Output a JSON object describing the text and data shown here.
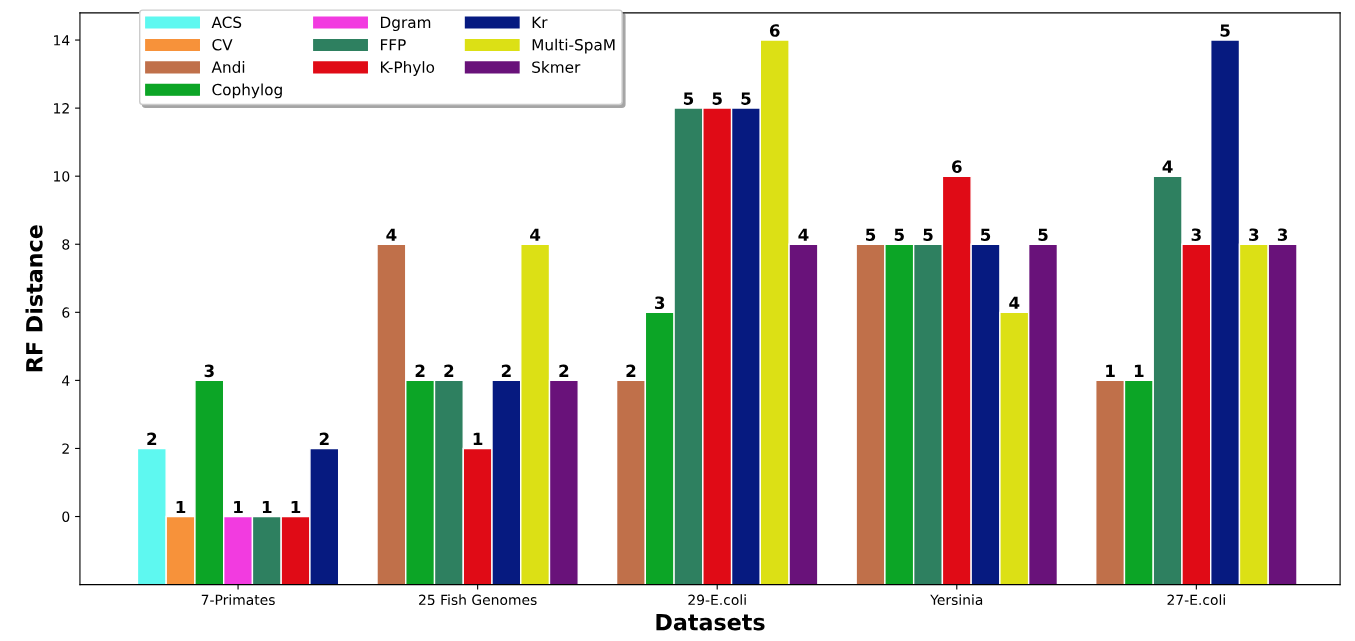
{
  "chart_data": {
    "type": "bar",
    "xlabel": "Datasets",
    "ylabel": "RF Distance",
    "categories": [
      "7-Primates",
      "25 Fish Genomes",
      "29-E.coli",
      "Yersinia",
      "27-E.coli"
    ],
    "ylim": [
      -2,
      14.8
    ],
    "yticks": [
      0,
      2,
      4,
      6,
      8,
      10,
      12,
      14
    ],
    "legend": "top left",
    "grid": false,
    "series": [
      {
        "name": "ACS",
        "color": "#5ef8f0",
        "base": [
          -2,
          null,
          null,
          null,
          null
        ],
        "values": [
          4,
          null,
          null,
          null,
          null
        ]
      },
      {
        "name": "CV",
        "color": "#f7923a",
        "base": [
          -2,
          null,
          null,
          null,
          null
        ],
        "values": [
          2,
          null,
          null,
          null,
          null
        ]
      },
      {
        "name": "Andi",
        "color": "#c0704a",
        "base": [
          null,
          -2,
          -2,
          -2,
          -2
        ],
        "values": [
          null,
          10,
          6,
          10,
          6
        ]
      },
      {
        "name": "Cophylog",
        "color": "#0ca526",
        "base": [
          -2,
          -2,
          -2,
          -2,
          -2
        ],
        "values": [
          6,
          6,
          8,
          10,
          6
        ]
      },
      {
        "name": "Dgram",
        "color": "#f23be0",
        "base": [
          -2,
          null,
          null,
          null,
          null
        ],
        "values": [
          2,
          null,
          null,
          null,
          null
        ]
      },
      {
        "name": "FFP",
        "color": "#2e8060",
        "base": [
          -2,
          -2,
          -2,
          -2,
          -2
        ],
        "values": [
          2,
          6,
          14,
          10,
          12
        ]
      },
      {
        "name": "K-Phylo",
        "color": "#e00b16",
        "base": [
          -2,
          -2,
          -2,
          -2,
          -2
        ],
        "values": [
          2,
          4,
          14,
          12,
          10
        ]
      },
      {
        "name": "Kr",
        "color": "#061a80",
        "base": [
          -2,
          -2,
          -2,
          -2,
          -2
        ],
        "values": [
          4,
          6,
          14,
          10,
          16
        ]
      },
      {
        "name": "Multi-SpaM",
        "color": "#dce015",
        "base": [
          null,
          -2,
          -2,
          -2,
          -2
        ],
        "values": [
          null,
          10,
          16,
          8,
          10
        ]
      },
      {
        "name": "Skmer",
        "color": "#69127a",
        "base": [
          null,
          -2,
          -2,
          -2,
          -2
        ],
        "values": [
          null,
          6,
          10,
          10,
          10
        ]
      }
    ],
    "annotations": [
      "2",
      "1",
      "3",
      "1",
      "1",
      "1",
      "2",
      "4",
      "2",
      "2",
      "1",
      "2",
      "4",
      "2",
      "2",
      "3",
      "5",
      "5",
      "5",
      "6",
      "4",
      "5",
      "5",
      "5",
      "6",
      "5",
      "4",
      "5",
      "1",
      "1",
      "4",
      "3",
      "5",
      "3",
      "3"
    ]
  }
}
